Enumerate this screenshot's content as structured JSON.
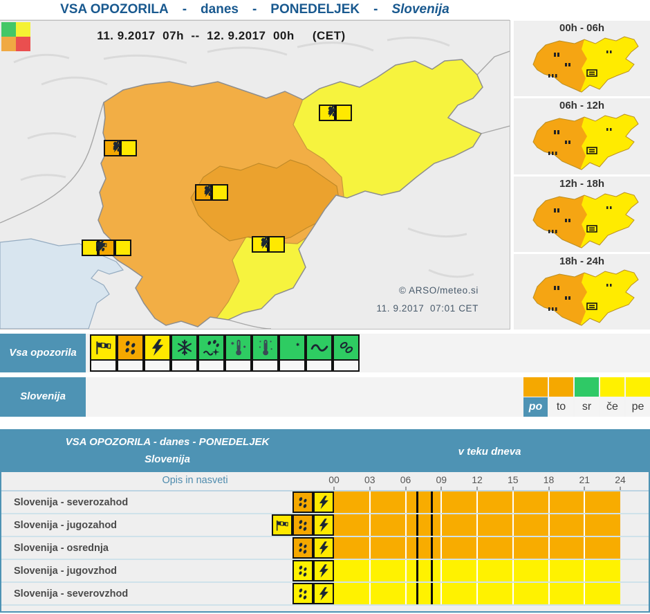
{
  "page_title": {
    "part_all": "VSA OPOZORILA",
    "dash": "-",
    "part_day": "danes",
    "part_weekday": "PONEDELJEK",
    "part_region": "Slovenija"
  },
  "map": {
    "validity": "11. 9.2017  07h  --  12. 9.2017  00h     (CET)",
    "credit": "© ARSO/meteo.si",
    "issued": "11. 9.2017  07:01 CET",
    "legend_colors": [
      "#44c767",
      "#f5f233",
      "#f0a943",
      "#ea4f4f"
    ],
    "region_colors": {
      "northwest": "#f2ae45",
      "southwest": "#f2ae45",
      "central": "#eba22e",
      "northeast": "#f6f33e",
      "southeast": "#f6f33e"
    },
    "markers": [
      {
        "region": "severozahod",
        "icons": [
          {
            "name": "rain",
            "color": "#f5a800"
          },
          {
            "name": "thunderstorm",
            "color": "#ffe900"
          }
        ]
      },
      {
        "region": "osrednja",
        "icons": [
          {
            "name": "rain",
            "color": "#f5a800"
          },
          {
            "name": "thunderstorm",
            "color": "#ffe900"
          }
        ]
      },
      {
        "region": "jugozahod",
        "icons": [
          {
            "name": "wind",
            "color": "#ffe900"
          },
          {
            "name": "rain",
            "color": "#f5a800"
          },
          {
            "name": "thunderstorm",
            "color": "#ffe900"
          }
        ]
      },
      {
        "region": "severovzhod",
        "icons": [
          {
            "name": "rain",
            "color": "#ffe900"
          },
          {
            "name": "thunderstorm",
            "color": "#ffe900"
          }
        ]
      },
      {
        "region": "jugovzhod",
        "icons": [
          {
            "name": "rain",
            "color": "#ffe900"
          },
          {
            "name": "thunderstorm",
            "color": "#ffe900"
          }
        ]
      }
    ]
  },
  "mini_maps": [
    {
      "label": "00h - 06h"
    },
    {
      "label": "06h - 12h"
    },
    {
      "label": "12h - 18h"
    },
    {
      "label": "18h - 24h"
    }
  ],
  "all_warnings_row": {
    "label": "Vsa opozorila",
    "icons": [
      {
        "name": "wind",
        "color": "#ffe900"
      },
      {
        "name": "rain",
        "color": "#f5a800"
      },
      {
        "name": "thunderstorm",
        "color": "#ffe900"
      },
      {
        "name": "snow",
        "color": "#2ecc62"
      },
      {
        "name": "snow-drift",
        "color": "#2ecc62"
      },
      {
        "name": "cold",
        "color": "#2ecc62"
      },
      {
        "name": "heat",
        "color": "#2ecc62"
      },
      {
        "name": "frost",
        "color": "#2ecc62"
      },
      {
        "name": "sea",
        "color": "#2ecc62"
      },
      {
        "name": "ice",
        "color": "#2ecc62"
      }
    ]
  },
  "region_row": {
    "label": "Slovenija",
    "days": [
      {
        "label": "po",
        "color": "#f5a800",
        "active": true
      },
      {
        "label": "to",
        "color": "#f5a800",
        "active": false
      },
      {
        "label": "sr",
        "color": "#2fc966",
        "active": false
      },
      {
        "label": "če",
        "color": "#fff100",
        "active": false
      },
      {
        "label": "pe",
        "color": "#fff100",
        "active": false
      }
    ]
  },
  "table": {
    "header_title": "VSA OPOZORILA - danes - PONEDELJEK",
    "header_region": "Slovenija",
    "header_right": "v teku dneva",
    "subheader_left": "Opis in nasveti",
    "hours": [
      "00",
      "03",
      "06",
      "09",
      "12",
      "15",
      "18",
      "21",
      "24"
    ],
    "time_markers_hours": [
      7,
      8.2
    ],
    "rows": [
      {
        "label": "Slovenija - severozahod",
        "bar_color": "#f8ac00",
        "icons": [
          {
            "name": "rain",
            "color": "#f5a800"
          },
          {
            "name": "thunderstorm",
            "color": "#ffe900"
          }
        ]
      },
      {
        "label": "Slovenija - jugozahod",
        "bar_color": "#f8ac00",
        "icons": [
          {
            "name": "wind",
            "color": "#ffe900"
          },
          {
            "name": "rain",
            "color": "#f5a800"
          },
          {
            "name": "thunderstorm",
            "color": "#ffe900"
          }
        ]
      },
      {
        "label": "Slovenija - osrednja",
        "bar_color": "#f8ac00",
        "icons": [
          {
            "name": "rain",
            "color": "#f5a800"
          },
          {
            "name": "thunderstorm",
            "color": "#ffe900"
          }
        ]
      },
      {
        "label": "Slovenija - jugovzhod",
        "bar_color": "#fff200",
        "icons": [
          {
            "name": "rain",
            "color": "#fff100"
          },
          {
            "name": "thunderstorm",
            "color": "#fff100"
          }
        ]
      },
      {
        "label": "Slovenija - severovzhod",
        "bar_color": "#fff200",
        "icons": [
          {
            "name": "rain",
            "color": "#fff100"
          },
          {
            "name": "thunderstorm",
            "color": "#fff100"
          }
        ]
      }
    ]
  },
  "colors": {
    "steel_blue": "#4e93b4",
    "orange": "#f5a800",
    "yellow": "#ffe900",
    "green": "#2ecc62",
    "red": "#ea4f4f"
  }
}
